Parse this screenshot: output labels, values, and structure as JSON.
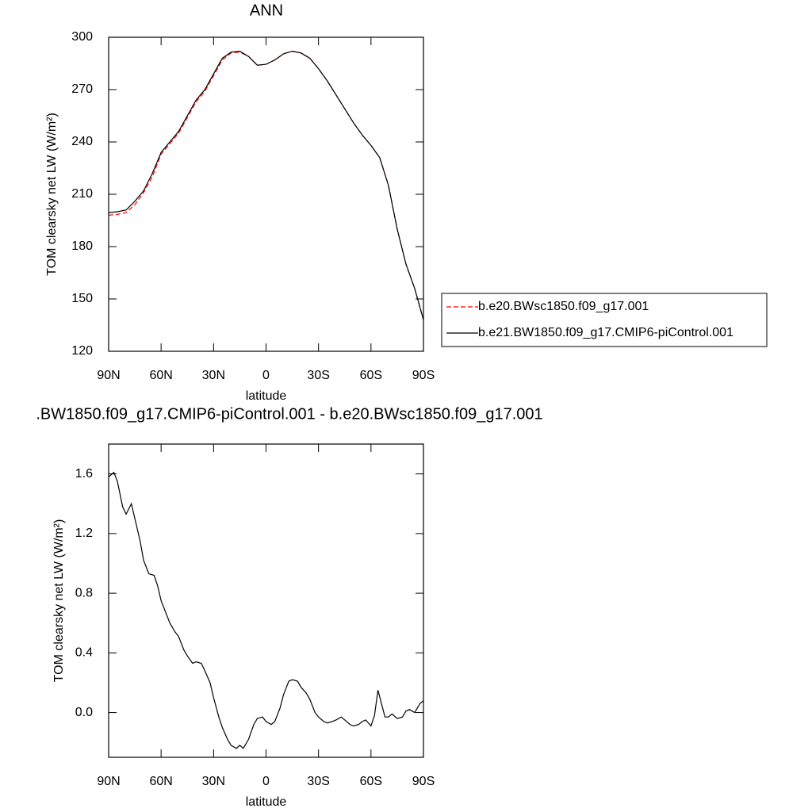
{
  "chart_data": [
    {
      "type": "line",
      "title": "ANN",
      "xlabel": "latitude",
      "ylabel": "TOM clearsky net LW (W/m²)",
      "x": [
        90,
        85,
        80,
        75,
        70,
        65,
        60,
        55,
        50,
        45,
        40,
        35,
        30,
        25,
        20,
        15,
        10,
        5,
        0,
        -5,
        -10,
        -15,
        -20,
        -25,
        -30,
        -35,
        -40,
        -45,
        -50,
        -55,
        -60,
        -65,
        -70,
        -75,
        -80,
        -85,
        -90
      ],
      "series": [
        {
          "name": "b.e20.BWsc1850.f09_g17.001",
          "color": "#ff0000",
          "dashed": true,
          "values": [
            198,
            198.5,
            199.5,
            204,
            211,
            220,
            233,
            239,
            245,
            254,
            263,
            269,
            278,
            287,
            291,
            291.5,
            289,
            284,
            284.5,
            287,
            290.5,
            292,
            291,
            288,
            282,
            275,
            267,
            259,
            251,
            244,
            238,
            231,
            215,
            190,
            170,
            156,
            138
          ]
        },
        {
          "name": "b.e21.BW1850.f09_g17.CMIP6-piControl.001",
          "color": "#000000",
          "dashed": false,
          "values": [
            199.5,
            200,
            201,
            206,
            212,
            222,
            234,
            240,
            246,
            255,
            264,
            270,
            279,
            288,
            291.5,
            292,
            289,
            284,
            284.5,
            287,
            290.5,
            292,
            291,
            288,
            282,
            275,
            267,
            259,
            251,
            244,
            238,
            231,
            215,
            190,
            170,
            156,
            138
          ]
        }
      ],
      "xlim": [
        90,
        -90
      ],
      "xticks": [
        {
          "value": 90,
          "label": "90N"
        },
        {
          "value": 60,
          "label": "60N"
        },
        {
          "value": 30,
          "label": "30N"
        },
        0,
        {
          "value": -30,
          "label": "30S"
        },
        {
          "value": -60,
          "label": "60S"
        },
        {
          "value": -90,
          "label": "90S"
        }
      ],
      "ylim": [
        120,
        300
      ],
      "yticks": [
        120,
        150,
        180,
        210,
        240,
        270,
        300
      ],
      "legend": "right"
    },
    {
      "type": "line",
      "title": ".BW1850.f09_g17.CMIP6-piControl.001 - b.e20.BWsc1850.f09_g17.001",
      "xlabel": "latitude",
      "ylabel": "TOM clearsky net LW (W/m²)",
      "x": [
        90,
        87,
        85,
        82,
        80,
        77,
        75,
        72,
        70,
        67,
        64,
        62,
        60,
        57,
        55,
        52,
        50,
        47,
        45,
        42,
        40,
        37,
        35,
        32,
        30,
        27,
        25,
        22,
        20,
        17,
        15,
        13,
        10,
        7,
        5,
        2,
        0,
        -3,
        -5,
        -8,
        -10,
        -13,
        -15,
        -18,
        -20,
        -23,
        -25,
        -28,
        -30,
        -33,
        -35,
        -38,
        -40,
        -43,
        -45,
        -48,
        -50,
        -53,
        -55,
        -57,
        -60,
        -62,
        -64,
        -66,
        -68,
        -70,
        -72,
        -75,
        -78,
        -80,
        -82,
        -85,
        -88,
        -90
      ],
      "series": [
        {
          "color": "#000000",
          "dashed": false,
          "values": [
            1.58,
            1.61,
            1.55,
            1.38,
            1.33,
            1.4,
            1.3,
            1.15,
            1.02,
            0.93,
            0.92,
            0.85,
            0.75,
            0.66,
            0.6,
            0.54,
            0.51,
            0.42,
            0.38,
            0.33,
            0.34,
            0.33,
            0.28,
            0.2,
            0.1,
            -0.03,
            -0.1,
            -0.18,
            -0.22,
            -0.24,
            -0.22,
            -0.24,
            -0.18,
            -0.08,
            -0.04,
            -0.03,
            -0.06,
            -0.08,
            -0.06,
            0.03,
            0.12,
            0.21,
            0.22,
            0.21,
            0.17,
            0.13,
            0.09,
            0,
            -0.03,
            -0.06,
            -0.07,
            -0.06,
            -0.05,
            -0.03,
            -0.05,
            -0.08,
            -0.09,
            -0.08,
            -0.06,
            -0.05,
            -0.09,
            -0.02,
            0.15,
            0.06,
            -0.03,
            -0.03,
            -0.01,
            -0.04,
            -0.03,
            0.01,
            0.02,
            0,
            0.06,
            0.08
          ]
        }
      ],
      "xlim": [
        90,
        -90
      ],
      "xticks": [
        {
          "value": 90,
          "label": "90N"
        },
        {
          "value": 60,
          "label": "60N"
        },
        {
          "value": 30,
          "label": "30N"
        },
        0,
        {
          "value": -30,
          "label": "30S"
        },
        {
          "value": -60,
          "label": "60S"
        },
        {
          "value": -90,
          "label": "90S"
        }
      ],
      "ylim": [
        -0.3,
        1.8
      ],
      "yticks": [
        {
          "value": 0,
          "label": "0.0"
        },
        0.4,
        0.8,
        1.2,
        1.6
      ]
    }
  ]
}
